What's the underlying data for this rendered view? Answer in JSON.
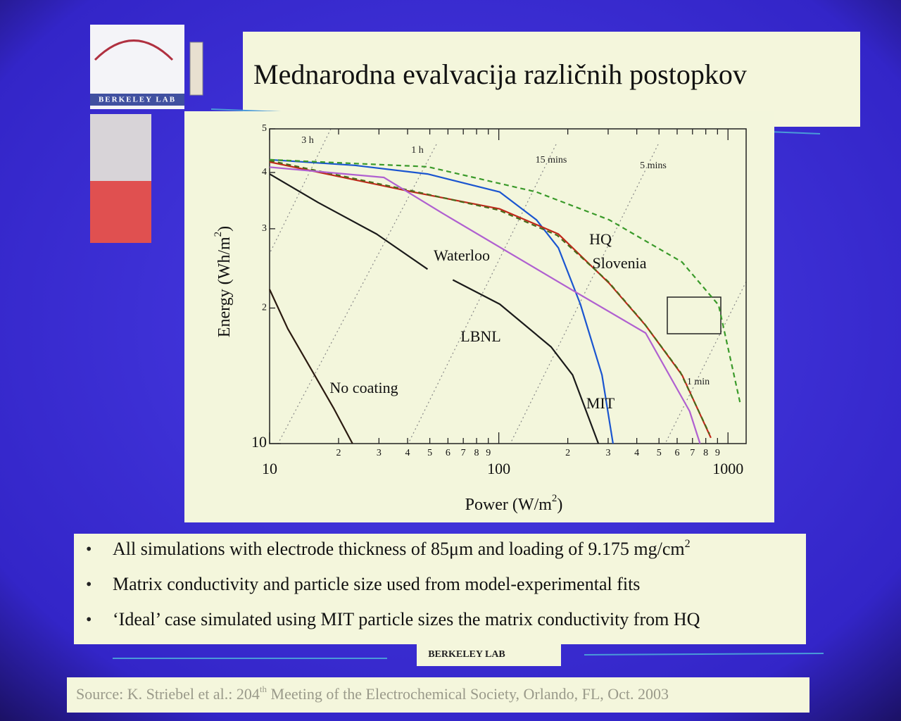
{
  "slide": {
    "title": "Mednarodna evalvacija različnih postopkov",
    "logo": "BERKELEY LAB",
    "bullets": [
      [
        "All simulations with electrode thickness of 85μm and loading of 9.175 mg/cm",
        "2"
      ],
      [
        "Matrix conductivity and particle size used from model-experimental fits"
      ],
      [
        "‘Ideal’ case simulated using MIT particle sizes the matrix conductivity from HQ"
      ]
    ],
    "footer": "BERKELEY LAB",
    "source": [
      "Source: K. Striebel et al.: 204",
      "th",
      " Meeting of the Electrochemical Society, Orlando, FL, Oct. 2003"
    ]
  },
  "chart_data": {
    "type": "line",
    "x_label": [
      "Power (W/m",
      "2",
      ")"
    ],
    "y_label": [
      "Energy (Wh/m",
      "2",
      ")"
    ],
    "log_x": true,
    "log_y": true,
    "xlim": [
      10,
      1200
    ],
    "ylim": [
      10,
      50
    ],
    "xticks": [
      10,
      {
        "value": 20,
        "label": "2"
      },
      {
        "value": 30,
        "label": "3"
      },
      {
        "value": 40,
        "label": "4"
      },
      {
        "value": 50,
        "label": "5"
      },
      {
        "value": 60,
        "label": "6"
      },
      {
        "value": 70,
        "label": "7"
      },
      {
        "value": 80,
        "label": "8"
      },
      {
        "value": 90,
        "label": "9"
      },
      100,
      {
        "value": 200,
        "label": "2"
      },
      {
        "value": 300,
        "label": "3"
      },
      {
        "value": 400,
        "label": "4"
      },
      {
        "value": 500,
        "label": "5"
      },
      {
        "value": 600,
        "label": "6"
      },
      {
        "value": 700,
        "label": "7"
      },
      {
        "value": 800,
        "label": "8"
      },
      {
        "value": 900,
        "label": "9"
      },
      1000
    ],
    "yticks": [
      10,
      {
        "value": 20,
        "label": "2"
      },
      {
        "value": 30,
        "label": "3"
      },
      {
        "value": 40,
        "label": "4"
      },
      {
        "value": 50,
        "label": "5"
      }
    ],
    "time_labels": [
      "3 h",
      "1 h",
      "15 mins",
      "5 mins",
      "1 min"
    ],
    "series": [
      {
        "name": "No coating",
        "color": "#2a1a10",
        "x": [
          10,
          12,
          15.7,
          19,
          23
        ],
        "values": [
          22,
          18,
          14.2,
          12,
          10
        ]
      },
      {
        "name": "Waterloo",
        "color": "#1a1a1a",
        "x": [
          10,
          16.3,
          29.3,
          48.9
        ],
        "values": [
          39.7,
          34.3,
          29.2,
          24.4
        ]
      },
      {
        "name": "LBNL",
        "color": "#1a1a1a",
        "x": [
          63,
          101,
          169,
          210,
          272
        ],
        "values": [
          23.1,
          20.4,
          16.4,
          14.2,
          10
        ]
      },
      {
        "name": "MIT",
        "color": "#1a55d0",
        "x": [
          10,
          23.5,
          48.9,
          101,
          146,
          182,
          227,
          282,
          315
        ],
        "values": [
          42.7,
          41.5,
          39.7,
          36.2,
          31.4,
          27.2,
          20.4,
          14.2,
          10
        ]
      },
      {
        "name": "HQ",
        "color": "#c0281a",
        "x": [
          10,
          42.2,
          101,
          182,
          303,
          437,
          630,
          842
        ],
        "values": [
          42.2,
          36.2,
          33.2,
          29.2,
          22.7,
          18.3,
          14.2,
          10.3
        ]
      },
      {
        "name": "Slovenia",
        "color": "#4a6a1a",
        "dashed": true,
        "x": [
          10,
          42,
          100,
          180,
          300,
          430,
          620,
          830
        ],
        "values": [
          42.5,
          36.4,
          33.0,
          29.0,
          22.9,
          18.5,
          14.4,
          10.5
        ]
      },
      {
        "color": "#3a9a2a",
        "dashed": true,
        "x": [
          10,
          48.9,
          146,
          303,
          630,
          910,
          1130
        ],
        "values": [
          42.7,
          41.2,
          36.2,
          31.4,
          25.3,
          20.3,
          12.3
        ]
      },
      {
        "color": "#b060d0",
        "x": [
          10,
          31.5,
          56.6,
          210,
          437,
          680,
          755
        ],
        "values": [
          41.1,
          39.0,
          32.5,
          21.9,
          17.6,
          11.8,
          10
        ]
      }
    ]
  }
}
